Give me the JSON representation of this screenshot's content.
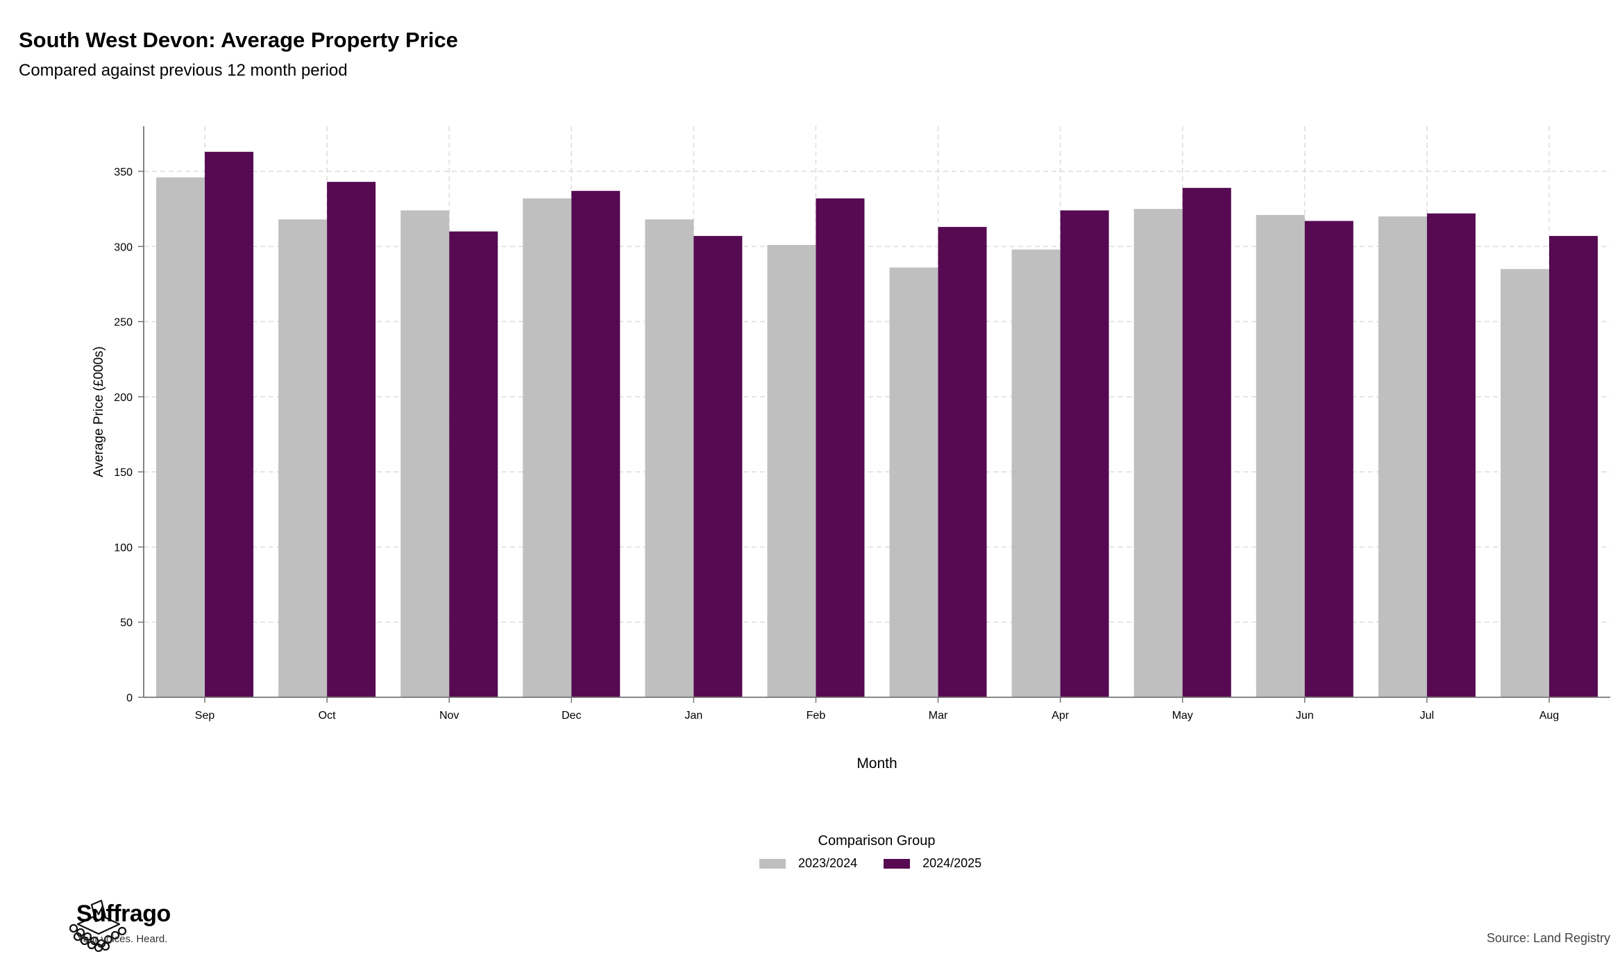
{
  "header": {
    "title": "South West Devon: Average Property Price",
    "subtitle": "Compared against previous 12 month period"
  },
  "legend": {
    "title": "Comparison Group",
    "items": [
      {
        "label": "2023/2024",
        "color": "#bfbfbf"
      },
      {
        "label": "2024/2025",
        "color": "#560a52"
      }
    ]
  },
  "footer": {
    "brand": "Suffrago",
    "tagline": "Your voices. Heard.",
    "source": "Source: Land Registry"
  },
  "chart_data": {
    "type": "bar",
    "title": "South West Devon: Average Property Price",
    "subtitle": "Compared against previous 12 month period",
    "xlabel": "Month",
    "ylabel": "Average Price (£000s)",
    "ylim": [
      0,
      380
    ],
    "yticks": [
      0,
      50,
      100,
      150,
      200,
      250,
      300,
      350
    ],
    "grid": true,
    "legend_position": "bottom",
    "categories": [
      "Sep",
      "Oct",
      "Nov",
      "Dec",
      "Jan",
      "Feb",
      "Mar",
      "Apr",
      "May",
      "Jun",
      "Jul",
      "Aug"
    ],
    "series": [
      {
        "name": "2023/2024",
        "color": "#bfbfbf",
        "values": [
          346,
          318,
          324,
          332,
          318,
          301,
          286,
          298,
          325,
          321,
          320,
          285
        ]
      },
      {
        "name": "2024/2025",
        "color": "#560a52",
        "values": [
          363,
          343,
          310,
          337,
          307,
          332,
          313,
          324,
          339,
          317,
          322,
          307
        ]
      }
    ]
  }
}
